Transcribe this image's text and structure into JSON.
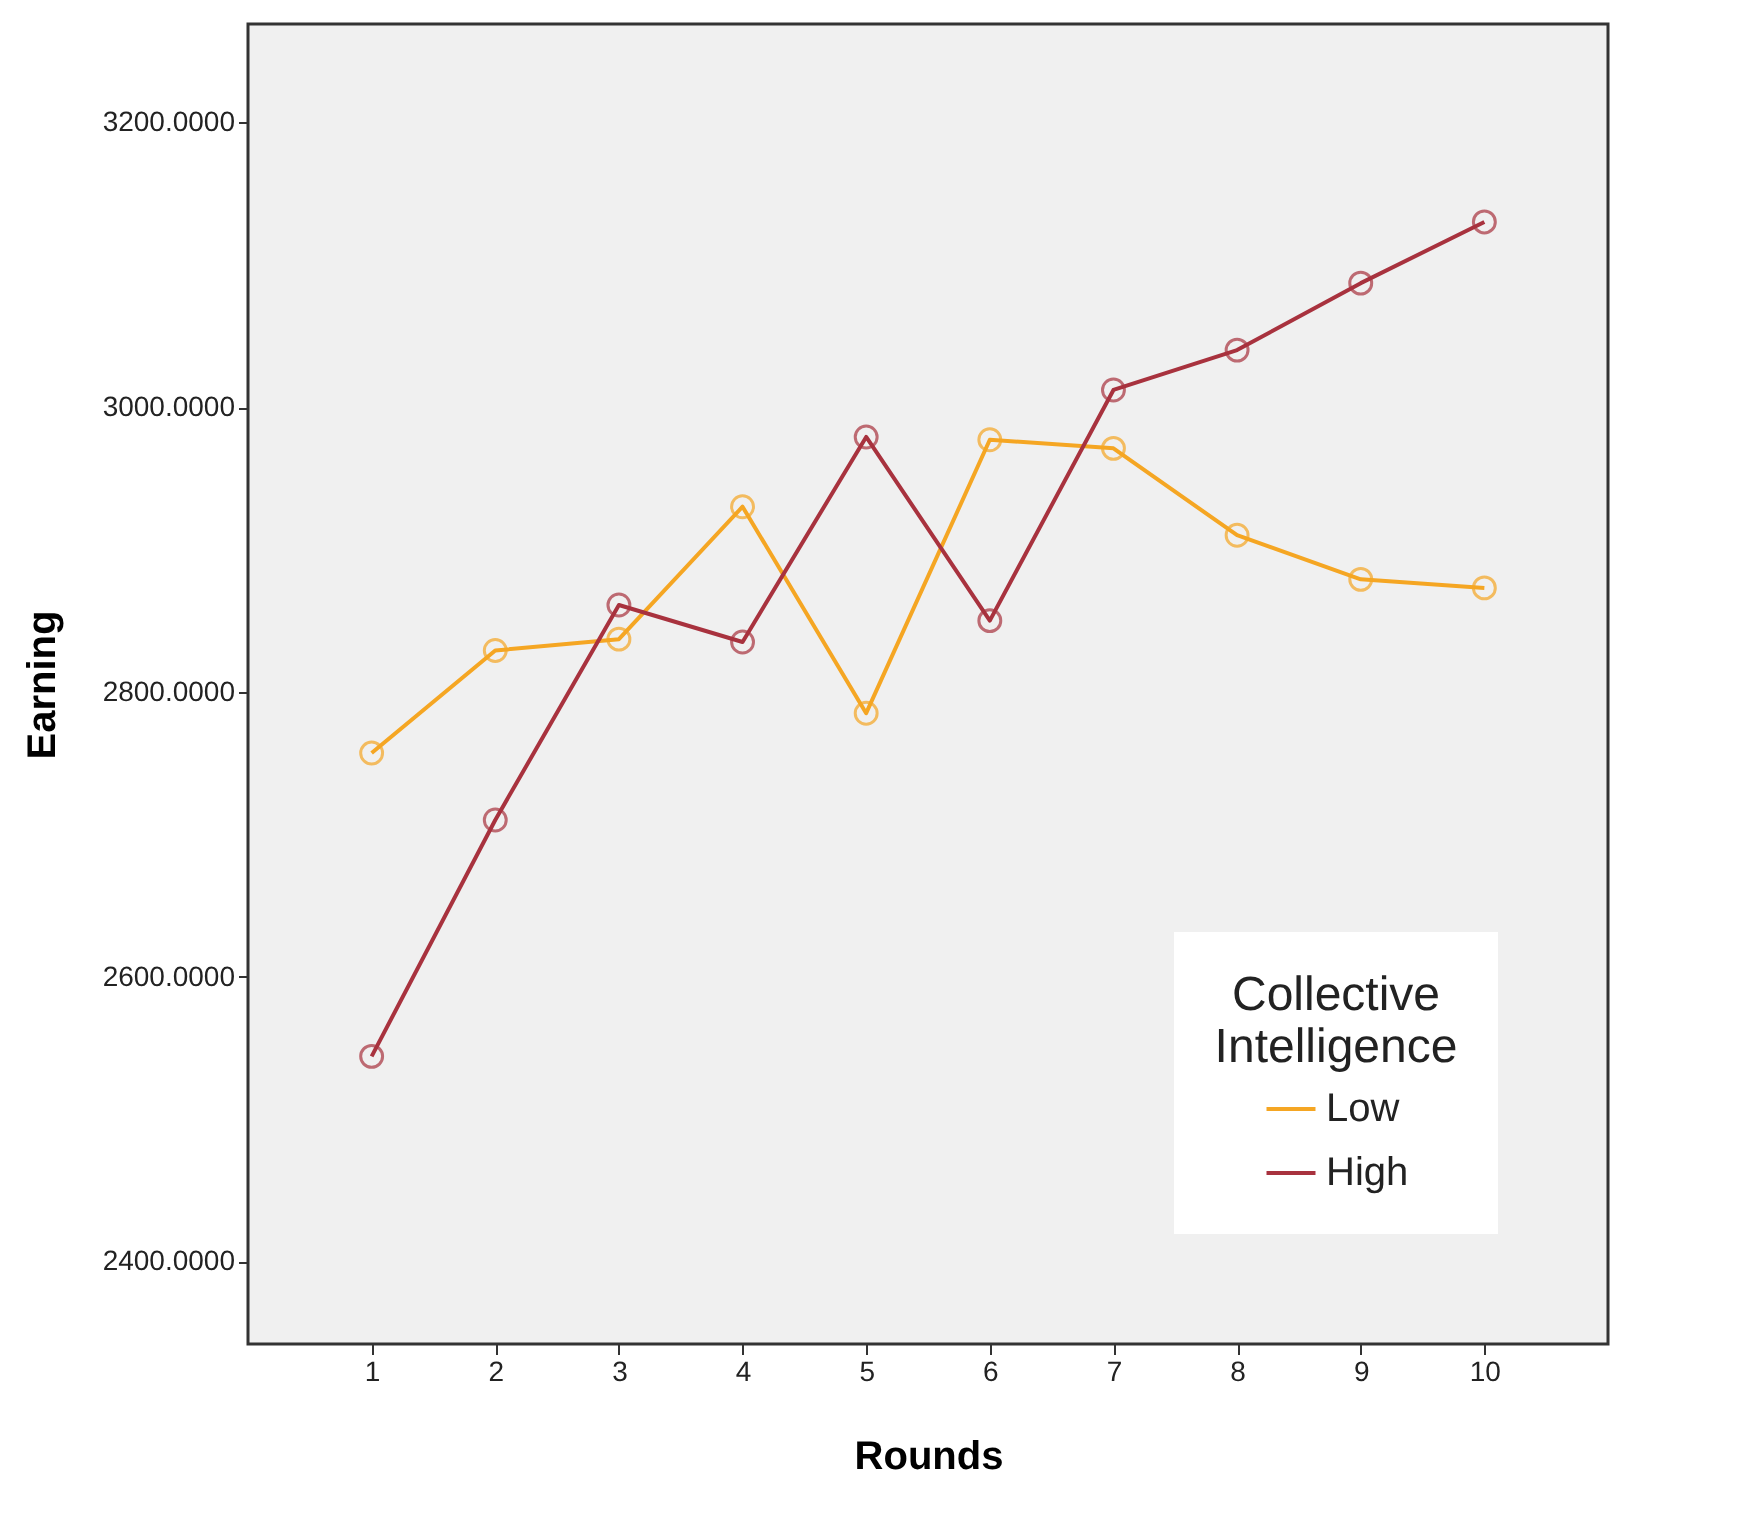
{
  "chart_data": {
    "type": "line",
    "xlabel": "Rounds",
    "ylabel": "Earning",
    "legend_title": "Collective Intelligence",
    "x": [
      1,
      2,
      3,
      4,
      5,
      6,
      7,
      8,
      9,
      10
    ],
    "series": [
      {
        "name": "Low",
        "color": "#f5a623",
        "values": [
          2757,
          2829,
          2837,
          2930,
          2785,
          2977,
          2971,
          2910,
          2879,
          2873
        ]
      },
      {
        "name": "High",
        "color": "#a8323e",
        "values": [
          2544,
          2710,
          2861,
          2835,
          2979,
          2850,
          3012,
          3040,
          3087,
          3130
        ]
      }
    ],
    "xlim": [
      0,
      11
    ],
    "xticks": [
      1,
      2,
      3,
      4,
      5,
      6,
      7,
      8,
      9,
      10
    ],
    "ylim": [
      2342,
      3269
    ],
    "yticks": [
      {
        "value": 2400,
        "label": "2400.0000"
      },
      {
        "value": 2600,
        "label": "2600.0000"
      },
      {
        "value": 2800,
        "label": "2800.0000"
      },
      {
        "value": 3000,
        "label": "3000.0000"
      },
      {
        "value": 3200,
        "label": "3200.0000"
      }
    ],
    "grid": false,
    "legend": "bottom right",
    "marker": "circle",
    "line_style": "solid"
  }
}
